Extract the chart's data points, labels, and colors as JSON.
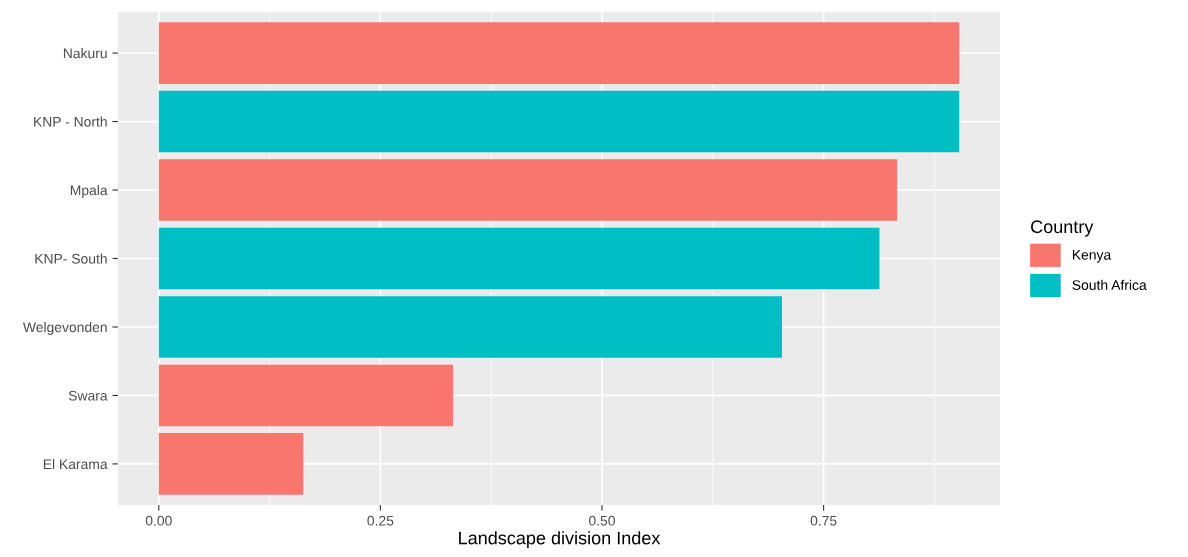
{
  "chart_data": {
    "type": "bar",
    "orientation": "horizontal",
    "xlabel": "Landscape division Index",
    "legend_title": "Country",
    "legend": "right",
    "grid": true,
    "categories": [
      "Nakuru",
      "KNP - North",
      "Mpala",
      "KNP- South",
      "Welgevonden",
      "Swara",
      "El Karama"
    ],
    "series": [
      {
        "name": "Kenya",
        "color": "#f8766d",
        "values": [
          0.903,
          null,
          0.833,
          null,
          null,
          0.332,
          0.163
        ]
      },
      {
        "name": "South Africa",
        "color": "#00bfc4",
        "values": [
          null,
          0.903,
          null,
          0.813,
          0.703,
          null,
          null
        ]
      }
    ],
    "xlim": [
      -0.046,
      0.949
    ],
    "xticks": [
      {
        "value": 0,
        "label": "0.00"
      },
      {
        "value": 0.25,
        "label": "0.25"
      },
      {
        "value": 0.5,
        "label": "0.50"
      },
      {
        "value": 0.75,
        "label": "0.75"
      }
    ]
  }
}
